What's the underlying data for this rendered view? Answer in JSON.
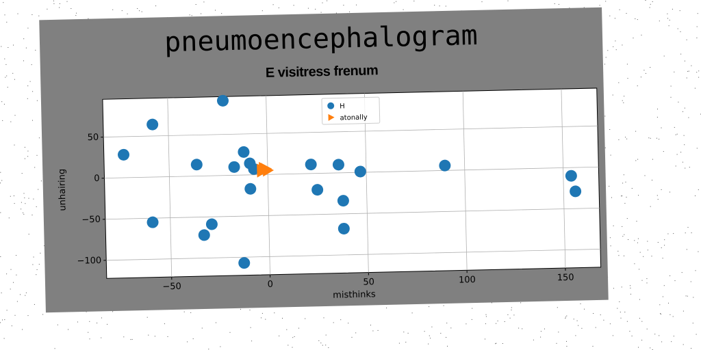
{
  "figure": {
    "suptitle": "pneumoencephalogram",
    "colors": {
      "background": "#808080",
      "plot_area": "#ffffff",
      "grid": "#b0b0b0"
    }
  },
  "chart_data": {
    "type": "scatter",
    "title": "E visitress frenum",
    "xlabel": "misthinks",
    "ylabel": "unhairing",
    "xlim": [
      -83,
      168
    ],
    "ylim": [
      -122,
      96
    ],
    "xticks": [
      -50,
      0,
      50,
      100,
      150
    ],
    "yticks": [
      -100,
      -50,
      0,
      50
    ],
    "grid": true,
    "legend_position": "top-center",
    "series": [
      {
        "name": "H",
        "marker": "circle",
        "color": "#1f77b4",
        "points": [
          [
            -73,
            28
          ],
          [
            -58,
            64
          ],
          [
            -22,
            91
          ],
          [
            -12,
            28
          ],
          [
            -36,
            14
          ],
          [
            -17,
            10
          ],
          [
            -9,
            14
          ],
          [
            -7,
            7
          ],
          [
            -9,
            -17
          ],
          [
            -59,
            -55
          ],
          [
            -29,
            -59
          ],
          [
            -33,
            -72
          ],
          [
            -13,
            -107
          ],
          [
            22,
            11
          ],
          [
            36,
            10
          ],
          [
            47,
            1
          ],
          [
            25,
            -20
          ],
          [
            38,
            -34
          ],
          [
            38,
            -68
          ],
          [
            90,
            6
          ],
          [
            154,
            -10
          ],
          [
            156,
            -29
          ]
        ]
      },
      {
        "name": "atonally",
        "marker": "triangle-right",
        "color": "#ff7f0e",
        "points": [
          [
            -3,
            6
          ],
          [
            -2,
            8
          ],
          [
            -1,
            7
          ],
          [
            0,
            5
          ],
          [
            -3,
            4
          ]
        ]
      }
    ]
  }
}
